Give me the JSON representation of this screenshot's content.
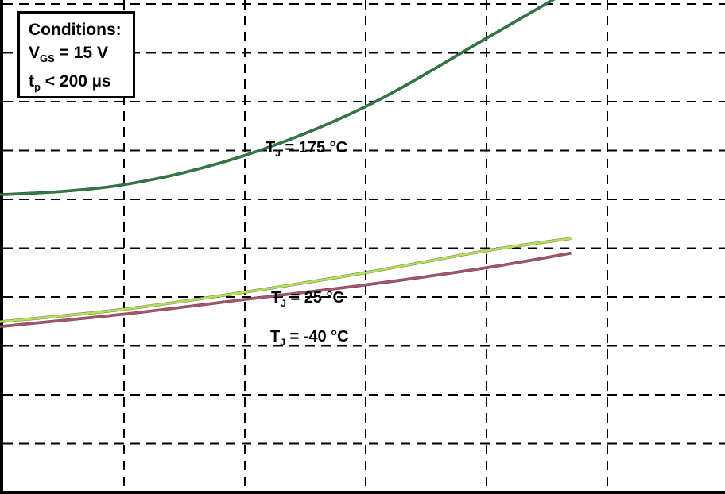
{
  "conditions": {
    "heading": "Conditions:",
    "vgs_symbol": "V",
    "vgs_subscript": "GS",
    "vgs_value": " = 15 V",
    "tp_symbol": "t",
    "tp_subscript": "p",
    "tp_value": " < 200 µs"
  },
  "chart_data": {
    "type": "line",
    "title": "",
    "xlabel": "",
    "ylabel": "",
    "xlim": [
      0,
      6
    ],
    "ylim": [
      0,
      10
    ],
    "grid": true,
    "grid_style": "dashed",
    "series": [
      {
        "name": "T_J = 175 °C",
        "label_symbol": "T",
        "label_subscript": "J",
        "label_value": " = 175 °C",
        "color": "#2f7a45",
        "x": [
          -0.5,
          0.0,
          1.0,
          2.0,
          3.0,
          4.0,
          4.7
        ],
        "y": [
          6.15,
          6.1,
          6.3,
          6.9,
          7.9,
          9.3,
          10.3
        ]
      },
      {
        "name": "T_J = 25 °C",
        "label_symbol": "T",
        "label_subscript": "J",
        "label_value": " = 25 °C",
        "color": "#b7e05a",
        "x": [
          -0.5,
          0.0,
          1.0,
          2.0,
          3.0,
          4.0,
          4.7
        ],
        "y": [
          3.4,
          3.5,
          3.75,
          4.1,
          4.5,
          4.95,
          5.2
        ]
      },
      {
        "name": "T_J = -40 °C",
        "label_symbol": "T",
        "label_subscript": "J",
        "label_value": " = -40 °C",
        "color": "#a7556a",
        "x": [
          -0.5,
          0.0,
          1.0,
          2.0,
          3.0,
          4.0,
          4.7
        ],
        "y": [
          3.25,
          3.4,
          3.65,
          3.95,
          4.25,
          4.6,
          4.9
        ]
      }
    ]
  }
}
